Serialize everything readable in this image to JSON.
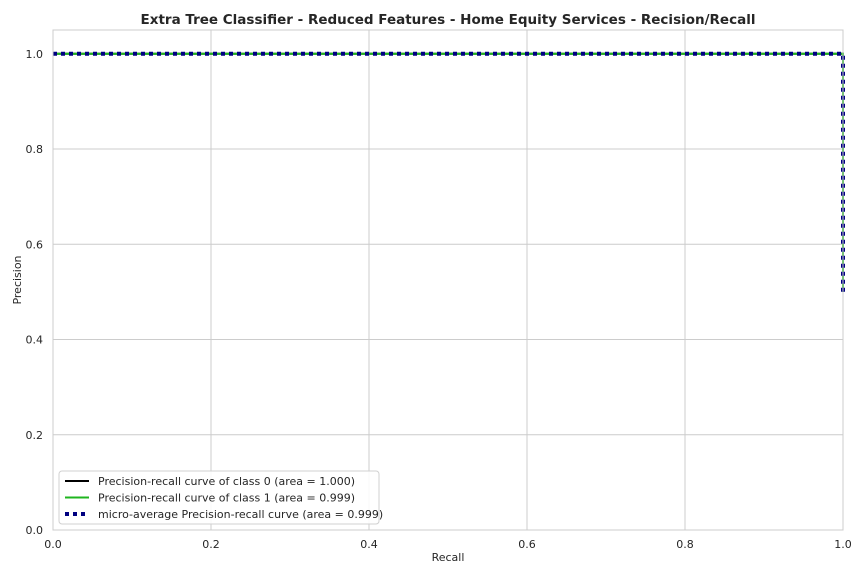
{
  "chart_data": {
    "type": "line",
    "title": "Extra Tree Classifier - Reduced Features - Home Equity Services - Recision/Recall",
    "xlabel": "Recall",
    "ylabel": "Precision",
    "xlim": [
      0.0,
      1.0
    ],
    "ylim": [
      0.0,
      1.05
    ],
    "xticks": [
      "0.0",
      "0.2",
      "0.4",
      "0.6",
      "0.8",
      "1.0"
    ],
    "yticks": [
      "0.0",
      "0.2",
      "0.4",
      "0.6",
      "0.8",
      "1.0"
    ],
    "grid": true,
    "legend_position": "lower-left",
    "series": [
      {
        "name": "Precision-recall curve of class 0 (area = 1.000)",
        "color": "#000000",
        "style": "solid",
        "x": [
          0.0,
          1.0,
          1.0
        ],
        "y": [
          1.0,
          1.0,
          0.5
        ]
      },
      {
        "name": "Precision-recall curve of class 1 (area = 0.999)",
        "color": "#1fb51f",
        "style": "solid",
        "x": [
          0.0,
          1.0,
          1.0
        ],
        "y": [
          1.0,
          1.0,
          0.5
        ]
      },
      {
        "name": "micro-average Precision-recall curve (area = 0.999)",
        "color": "#000080",
        "style": "dotted",
        "x": [
          0.0,
          1.0,
          1.0
        ],
        "y": [
          1.0,
          1.0,
          0.5
        ]
      }
    ]
  }
}
